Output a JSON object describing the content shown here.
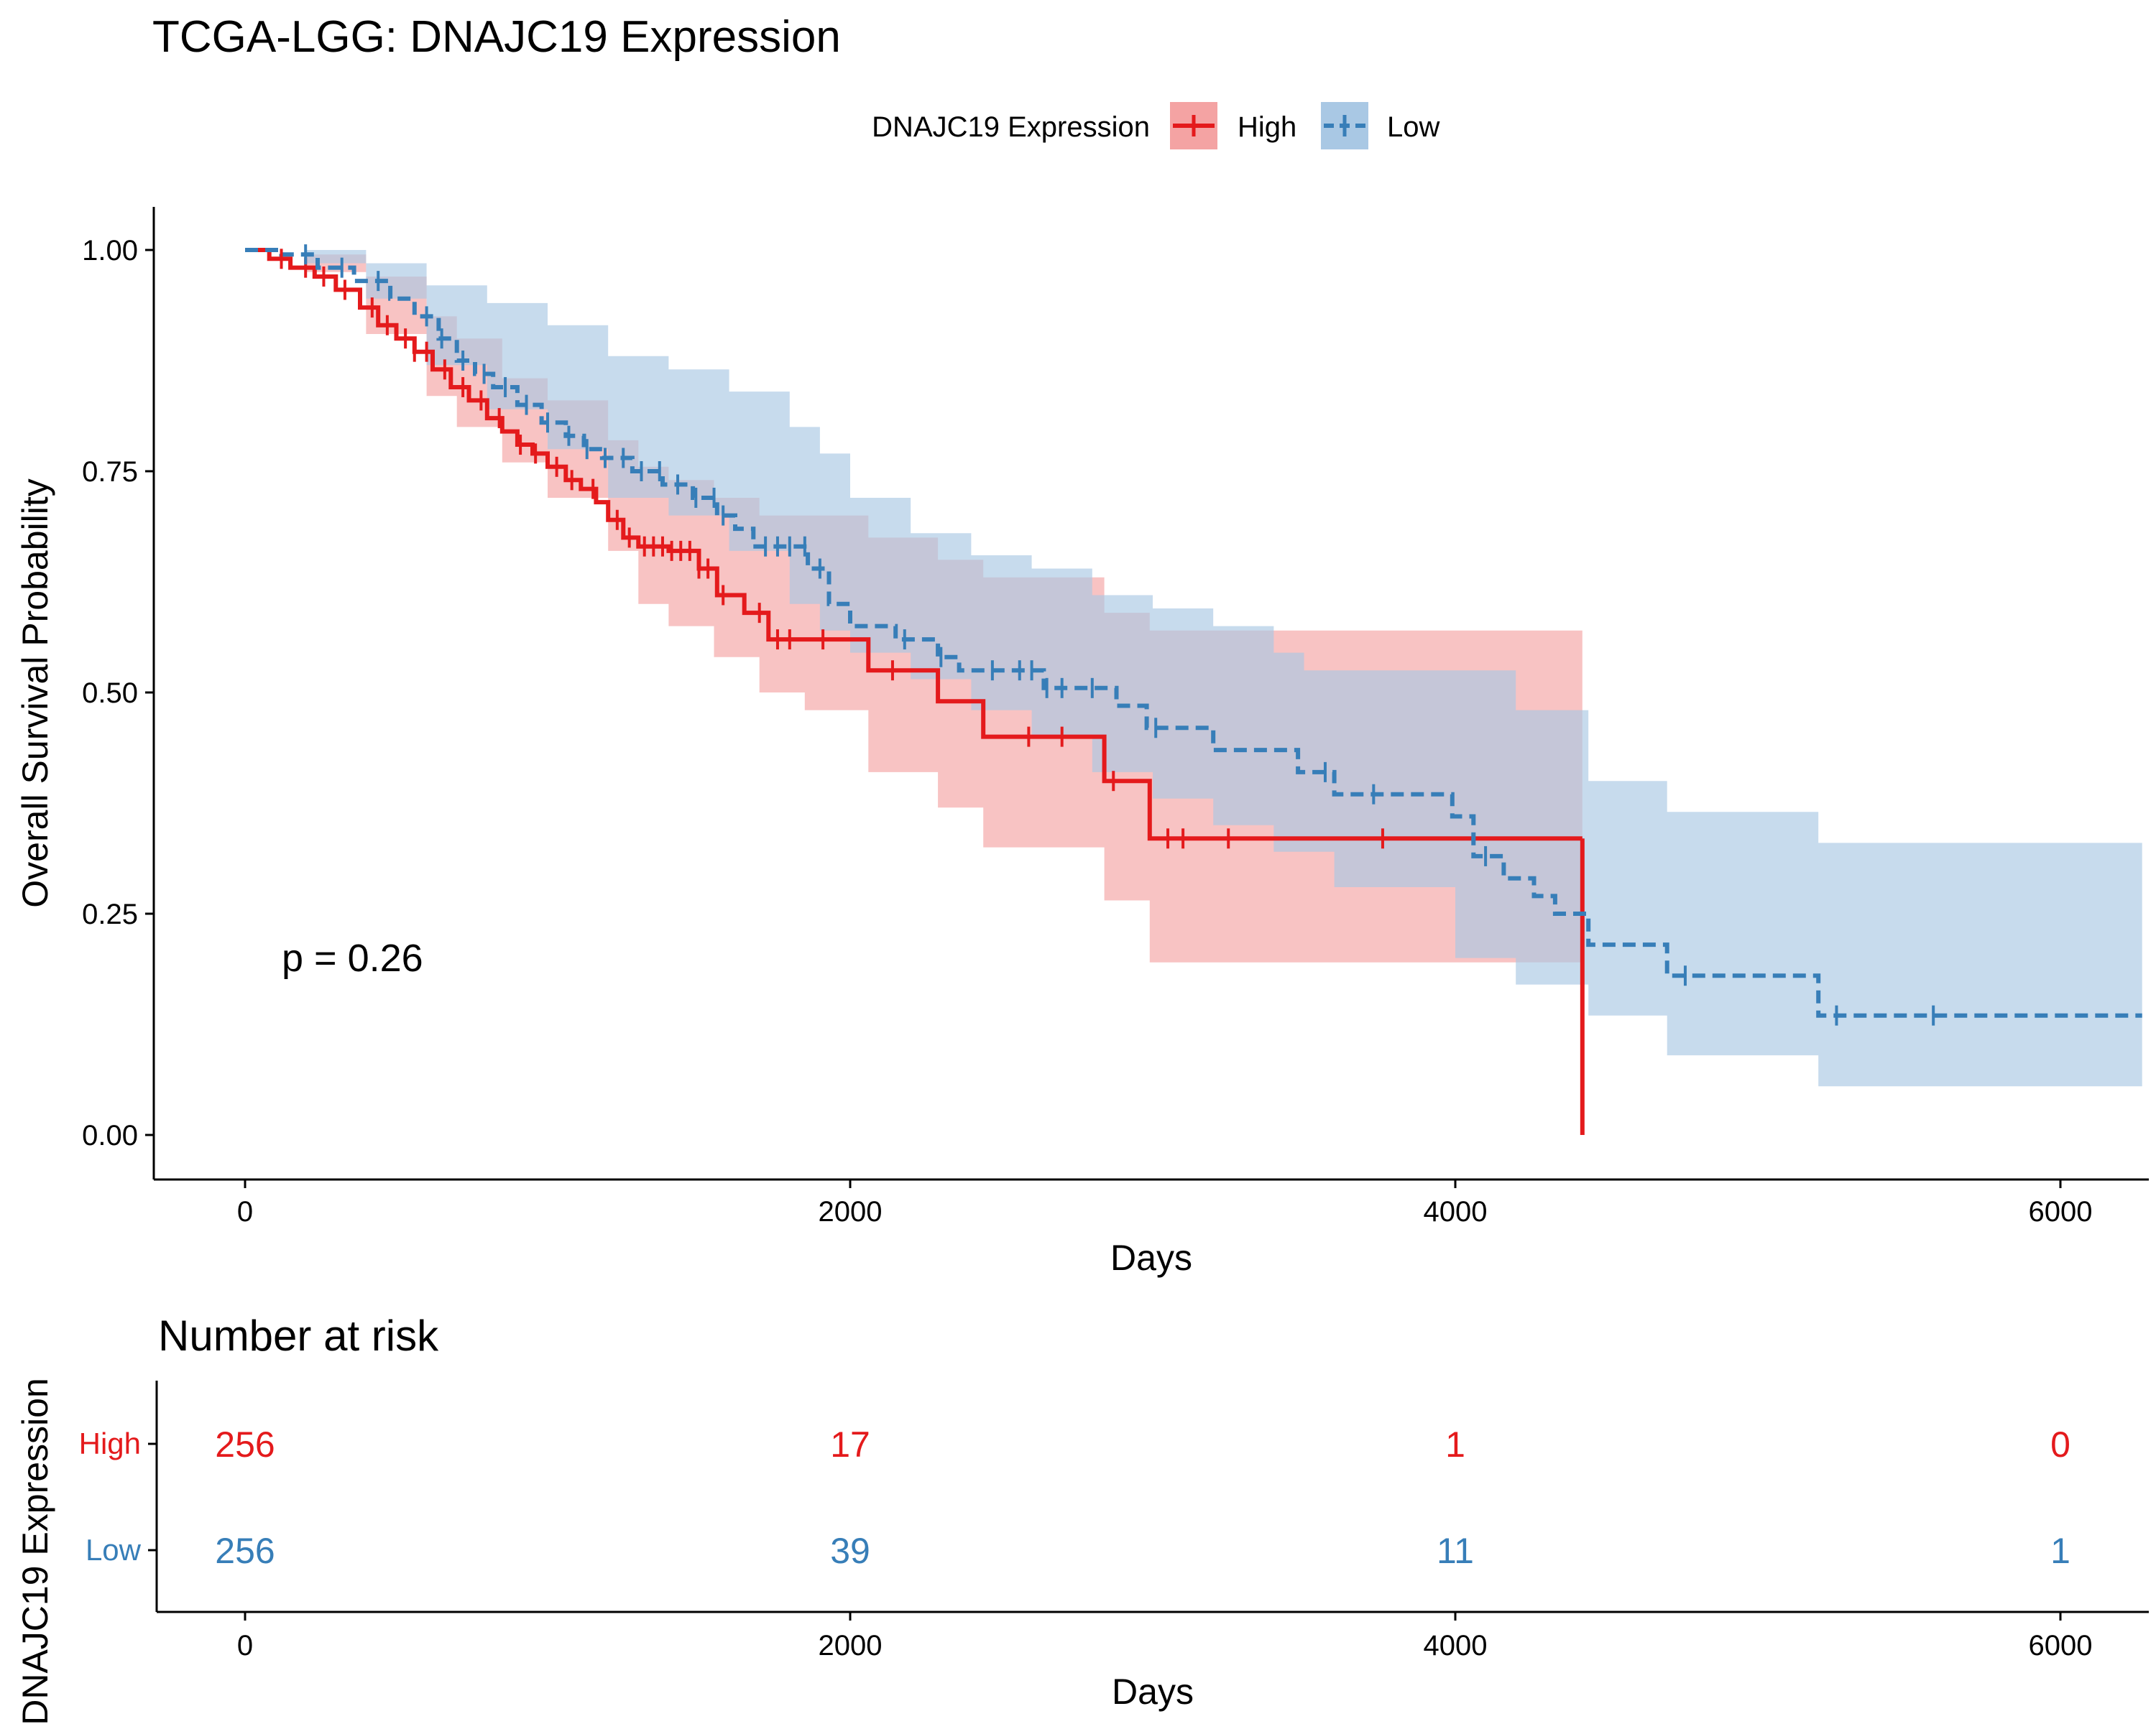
{
  "chart_data": {
    "type": "line",
    "subtype": "kaplan-meier",
    "title": "TCGA-LGG: DNAJC19 Expression",
    "xlabel": "Days",
    "ylabel": "Overall Survival Probability",
    "xlim": [
      -300,
      6300
    ],
    "ylim": [
      -0.05,
      1.05
    ],
    "x_ticks": [
      "0",
      "2000",
      "4000",
      "6000"
    ],
    "y_ticks": [
      "0.00",
      "0.25",
      "0.50",
      "0.75",
      "1.00"
    ],
    "grid": false,
    "legend": {
      "title": "DNAJC19 Expression",
      "position": "top",
      "entries": [
        "High",
        "Low"
      ]
    },
    "annotation": "p = 0.26",
    "colors": {
      "High": "#E41A1C",
      "Low": "#377EB8",
      "High_band": "#F4A3A3",
      "Low_band": "#A9C8E4",
      "overlap": "#9F6B84"
    },
    "series": [
      {
        "name": "High",
        "color": "#E41A1C",
        "line_style": "solid",
        "steps": [
          [
            0,
            1.0
          ],
          [
            80,
            0.99
          ],
          [
            150,
            0.98
          ],
          [
            230,
            0.97
          ],
          [
            300,
            0.955
          ],
          [
            380,
            0.935
          ],
          [
            440,
            0.915
          ],
          [
            500,
            0.9
          ],
          [
            560,
            0.885
          ],
          [
            620,
            0.865
          ],
          [
            680,
            0.845
          ],
          [
            740,
            0.83
          ],
          [
            800,
            0.81
          ],
          [
            850,
            0.795
          ],
          [
            900,
            0.78
          ],
          [
            950,
            0.77
          ],
          [
            1000,
            0.755
          ],
          [
            1060,
            0.74
          ],
          [
            1110,
            0.73
          ],
          [
            1160,
            0.715
          ],
          [
            1200,
            0.695
          ],
          [
            1250,
            0.675
          ],
          [
            1300,
            0.665
          ],
          [
            1400,
            0.66
          ],
          [
            1500,
            0.64
          ],
          [
            1560,
            0.61
          ],
          [
            1650,
            0.59
          ],
          [
            1730,
            0.56
          ],
          [
            1840,
            0.56
          ],
          [
            2060,
            0.525
          ],
          [
            2290,
            0.49
          ],
          [
            2440,
            0.45
          ],
          [
            2840,
            0.4
          ],
          [
            2990,
            0.335
          ],
          [
            4420,
            0.335
          ]
        ],
        "drop": [
          4420,
          0.0
        ],
        "censor_x": [
          120,
          200,
          260,
          330,
          420,
          470,
          530,
          560,
          600,
          660,
          720,
          780,
          840,
          910,
          960,
          1030,
          1080,
          1150,
          1230,
          1270,
          1320,
          1350,
          1380,
          1410,
          1440,
          1470,
          1500,
          1530,
          1580,
          1700,
          1760,
          1800,
          1910,
          2140,
          2590,
          2700,
          2870,
          3050,
          3100,
          3250,
          3760
        ],
        "band_upper": [
          [
            0,
            1.0
          ],
          [
            200,
            0.995
          ],
          [
            400,
            0.97
          ],
          [
            600,
            0.925
          ],
          [
            700,
            0.9
          ],
          [
            850,
            0.855
          ],
          [
            1000,
            0.83
          ],
          [
            1200,
            0.785
          ],
          [
            1300,
            0.755
          ],
          [
            1400,
            0.74
          ],
          [
            1550,
            0.72
          ],
          [
            1700,
            0.7
          ],
          [
            1850,
            0.7
          ],
          [
            2060,
            0.675
          ],
          [
            2290,
            0.65
          ],
          [
            2440,
            0.63
          ],
          [
            2840,
            0.59
          ],
          [
            2990,
            0.57
          ],
          [
            3500,
            0.57
          ],
          [
            4420,
            0.57
          ]
        ],
        "band_lower": [
          [
            0,
            1.0
          ],
          [
            200,
            0.975
          ],
          [
            400,
            0.905
          ],
          [
            600,
            0.835
          ],
          [
            700,
            0.8
          ],
          [
            850,
            0.76
          ],
          [
            1000,
            0.72
          ],
          [
            1200,
            0.66
          ],
          [
            1300,
            0.6
          ],
          [
            1400,
            0.575
          ],
          [
            1550,
            0.54
          ],
          [
            1700,
            0.5
          ],
          [
            1850,
            0.48
          ],
          [
            2060,
            0.41
          ],
          [
            2290,
            0.37
          ],
          [
            2440,
            0.325
          ],
          [
            2840,
            0.265
          ],
          [
            2990,
            0.195
          ],
          [
            4420,
            0.195
          ]
        ]
      },
      {
        "name": "Low",
        "color": "#377EB8",
        "line_style": "dashed",
        "steps": [
          [
            0,
            1.0
          ],
          [
            120,
            0.995
          ],
          [
            240,
            0.98
          ],
          [
            360,
            0.965
          ],
          [
            480,
            0.945
          ],
          [
            560,
            0.925
          ],
          [
            640,
            0.9
          ],
          [
            700,
            0.875
          ],
          [
            760,
            0.86
          ],
          [
            820,
            0.845
          ],
          [
            900,
            0.825
          ],
          [
            980,
            0.805
          ],
          [
            1060,
            0.79
          ],
          [
            1120,
            0.775
          ],
          [
            1180,
            0.765
          ],
          [
            1280,
            0.75
          ],
          [
            1380,
            0.735
          ],
          [
            1480,
            0.72
          ],
          [
            1560,
            0.7
          ],
          [
            1620,
            0.685
          ],
          [
            1680,
            0.665
          ],
          [
            1860,
            0.64
          ],
          [
            1930,
            0.6
          ],
          [
            2000,
            0.575
          ],
          [
            2150,
            0.56
          ],
          [
            2290,
            0.54
          ],
          [
            2360,
            0.525
          ],
          [
            2640,
            0.505
          ],
          [
            2880,
            0.485
          ],
          [
            2980,
            0.46
          ],
          [
            3200,
            0.435
          ],
          [
            3480,
            0.41
          ],
          [
            3600,
            0.385
          ],
          [
            3990,
            0.36
          ],
          [
            4060,
            0.315
          ],
          [
            4160,
            0.29
          ],
          [
            4260,
            0.27
          ],
          [
            4330,
            0.25
          ],
          [
            4440,
            0.215
          ],
          [
            4700,
            0.18
          ],
          [
            5200,
            0.135
          ],
          [
            6270,
            0.135
          ]
        ],
        "censor_x": [
          200,
          320,
          440,
          600,
          650,
          720,
          790,
          860,
          930,
          1000,
          1070,
          1130,
          1190,
          1250,
          1310,
          1370,
          1430,
          1490,
          1550,
          1580,
          1720,
          1760,
          1800,
          1850,
          1900,
          2180,
          2300,
          2470,
          2560,
          2600,
          2650,
          2700,
          2800,
          3010,
          3570,
          3730,
          4100,
          4760,
          5260,
          5580
        ],
        "band_upper": [
          [
            0,
            1.0
          ],
          [
            200,
            1.0
          ],
          [
            400,
            0.985
          ],
          [
            600,
            0.96
          ],
          [
            800,
            0.94
          ],
          [
            1000,
            0.915
          ],
          [
            1200,
            0.88
          ],
          [
            1400,
            0.865
          ],
          [
            1600,
            0.84
          ],
          [
            1800,
            0.8
          ],
          [
            1900,
            0.77
          ],
          [
            2000,
            0.72
          ],
          [
            2200,
            0.68
          ],
          [
            2400,
            0.655
          ],
          [
            2600,
            0.64
          ],
          [
            2800,
            0.61
          ],
          [
            3000,
            0.595
          ],
          [
            3200,
            0.575
          ],
          [
            3400,
            0.545
          ],
          [
            3500,
            0.525
          ],
          [
            4000,
            0.525
          ],
          [
            4200,
            0.48
          ],
          [
            4440,
            0.4
          ],
          [
            4700,
            0.365
          ],
          [
            5200,
            0.33
          ],
          [
            6270,
            0.33
          ]
        ],
        "band_lower": [
          [
            0,
            1.0
          ],
          [
            200,
            0.985
          ],
          [
            400,
            0.945
          ],
          [
            600,
            0.87
          ],
          [
            800,
            0.82
          ],
          [
            1000,
            0.775
          ],
          [
            1200,
            0.72
          ],
          [
            1400,
            0.7
          ],
          [
            1600,
            0.66
          ],
          [
            1800,
            0.6
          ],
          [
            1900,
            0.57
          ],
          [
            2000,
            0.545
          ],
          [
            2200,
            0.515
          ],
          [
            2400,
            0.48
          ],
          [
            2600,
            0.45
          ],
          [
            2800,
            0.41
          ],
          [
            3000,
            0.38
          ],
          [
            3200,
            0.35
          ],
          [
            3400,
            0.32
          ],
          [
            3600,
            0.28
          ],
          [
            4000,
            0.2
          ],
          [
            4200,
            0.17
          ],
          [
            4440,
            0.135
          ],
          [
            4700,
            0.09
          ],
          [
            5200,
            0.055
          ],
          [
            6270,
            0.055
          ]
        ]
      }
    ],
    "risk_table": {
      "title": "Number at risk",
      "ylabel": "DNAJC19 Expression",
      "xlabel": "Days",
      "x_ticks": [
        "0",
        "2000",
        "4000",
        "6000"
      ],
      "times": [
        0,
        2000,
        4000,
        6000
      ],
      "rows": [
        {
          "name": "High",
          "counts": [
            "256",
            "17",
            "1",
            "0"
          ]
        },
        {
          "name": "Low",
          "counts": [
            "256",
            "39",
            "11",
            "1"
          ]
        }
      ]
    }
  }
}
